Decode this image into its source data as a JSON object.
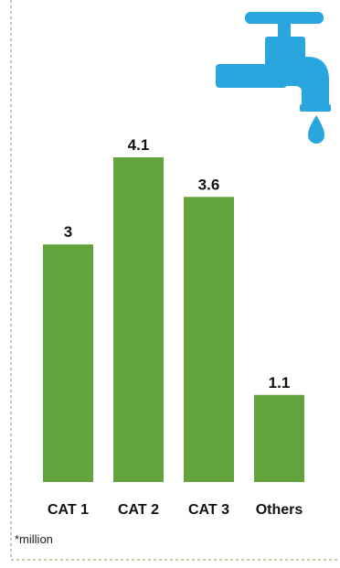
{
  "chart_data": {
    "type": "bar",
    "categories": [
      "CAT 1",
      "CAT 2",
      "CAT 3",
      "Others"
    ],
    "values": [
      3,
      4.1,
      3.6,
      1.1
    ],
    "data_labels": [
      "3",
      "4.1",
      "3.6",
      "1.1"
    ],
    "ylim": [
      0,
      4.1
    ],
    "grid": false,
    "legend": "none",
    "annotations": [
      "*million"
    ]
  },
  "colors": {
    "bar": "#62a33b",
    "border": "#a9c08f",
    "tap": "#2aa6de"
  },
  "icons": {
    "tap": "water-tap-icon"
  },
  "footnote": "*million"
}
